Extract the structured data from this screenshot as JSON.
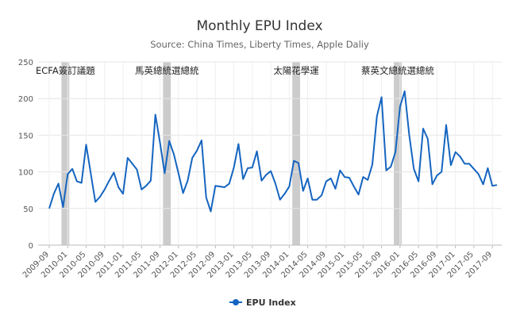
{
  "chart_data": {
    "type": "line",
    "title": "Monthly EPU Index",
    "subtitle": "Source: China Times, Liberty Times, Apple Daliy",
    "xlabel": "",
    "ylabel": "",
    "ylim": [
      0,
      250
    ],
    "y_ticks": [
      0,
      50,
      100,
      150,
      200,
      250
    ],
    "grid": true,
    "legend_position": "bottom-center",
    "x_start": "2009-09",
    "x_end": "2017-10",
    "x_tick_labels": [
      "2009-09",
      "2010-01",
      "2010-05",
      "2010-09",
      "2011-01",
      "2011-05",
      "2011-09",
      "2012-01",
      "2012-05",
      "2012-09",
      "2013-01",
      "2013-05",
      "2013-09",
      "2014-01",
      "2014-05",
      "2014-09",
      "2015-01",
      "2015-05",
      "2015-09",
      "2016-01",
      "2016-05",
      "2016-09",
      "2017-01",
      "2017-05",
      "2017-09"
    ],
    "x": [
      "2009-09",
      "2009-10",
      "2009-11",
      "2009-12",
      "2010-01",
      "2010-02",
      "2010-03",
      "2010-04",
      "2010-05",
      "2010-06",
      "2010-07",
      "2010-08",
      "2010-09",
      "2010-10",
      "2010-11",
      "2010-12",
      "2011-01",
      "2011-02",
      "2011-03",
      "2011-04",
      "2011-05",
      "2011-06",
      "2011-07",
      "2011-08",
      "2011-09",
      "2011-10",
      "2011-11",
      "2011-12",
      "2012-01",
      "2012-02",
      "2012-03",
      "2012-04",
      "2012-05",
      "2012-06",
      "2012-07",
      "2012-08",
      "2012-09",
      "2012-10",
      "2012-11",
      "2012-12",
      "2013-01",
      "2013-02",
      "2013-03",
      "2013-04",
      "2013-05",
      "2013-06",
      "2013-07",
      "2013-08",
      "2013-09",
      "2013-10",
      "2013-11",
      "2013-12",
      "2014-01",
      "2014-02",
      "2014-03",
      "2014-04",
      "2014-05",
      "2014-06",
      "2014-07",
      "2014-08",
      "2014-09",
      "2014-10",
      "2014-11",
      "2014-12",
      "2015-01",
      "2015-02",
      "2015-03",
      "2015-04",
      "2015-05",
      "2015-06",
      "2015-07",
      "2015-08",
      "2015-09",
      "2015-10",
      "2015-11",
      "2015-12",
      "2016-01",
      "2016-02",
      "2016-03",
      "2016-04",
      "2016-05",
      "2016-06",
      "2016-07",
      "2016-08",
      "2016-09",
      "2016-10",
      "2016-11",
      "2016-12",
      "2017-01",
      "2017-02",
      "2017-03",
      "2017-04",
      "2017-05",
      "2017-06",
      "2017-07",
      "2017-08",
      "2017-09",
      "2017-10"
    ],
    "series": [
      {
        "name": "EPU Index",
        "color": "#1565c0",
        "values": [
          50,
          70,
          84,
          52,
          97,
          104,
          87,
          85,
          137,
          98,
          59,
          66,
          76,
          88,
          99,
          79,
          70,
          119,
          111,
          103,
          76,
          81,
          88,
          178,
          140,
          98,
          142,
          124,
          98,
          71,
          88,
          119,
          129,
          143,
          65,
          46,
          81,
          80,
          79,
          84,
          106,
          138,
          90,
          105,
          106,
          128,
          88,
          96,
          101,
          84,
          62,
          70,
          80,
          115,
          112,
          74,
          91,
          62,
          62,
          68,
          87,
          91,
          77,
          102,
          93,
          92,
          80,
          69,
          93,
          89,
          110,
          176,
          202,
          102,
          107,
          127,
          189,
          210,
          150,
          104,
          87,
          159,
          145,
          83,
          95,
          100,
          164,
          109,
          127,
          121,
          111,
          111,
          104,
          97,
          83,
          105,
          81,
          82
        ]
      }
    ],
    "annotations": [
      {
        "label": "ECFA簽訂議題",
        "band": [
          "2009-12",
          "2010-01"
        ]
      },
      {
        "label": "馬英總統選總統",
        "band": [
          "2011-10",
          "2011-11"
        ]
      },
      {
        "label": "太陽花學運",
        "band": [
          "2014-02",
          "2014-03"
        ]
      },
      {
        "label": "蔡英文總統選總統",
        "band": [
          "2015-12",
          "2016-01"
        ]
      }
    ],
    "band_color": "#cccccc"
  }
}
